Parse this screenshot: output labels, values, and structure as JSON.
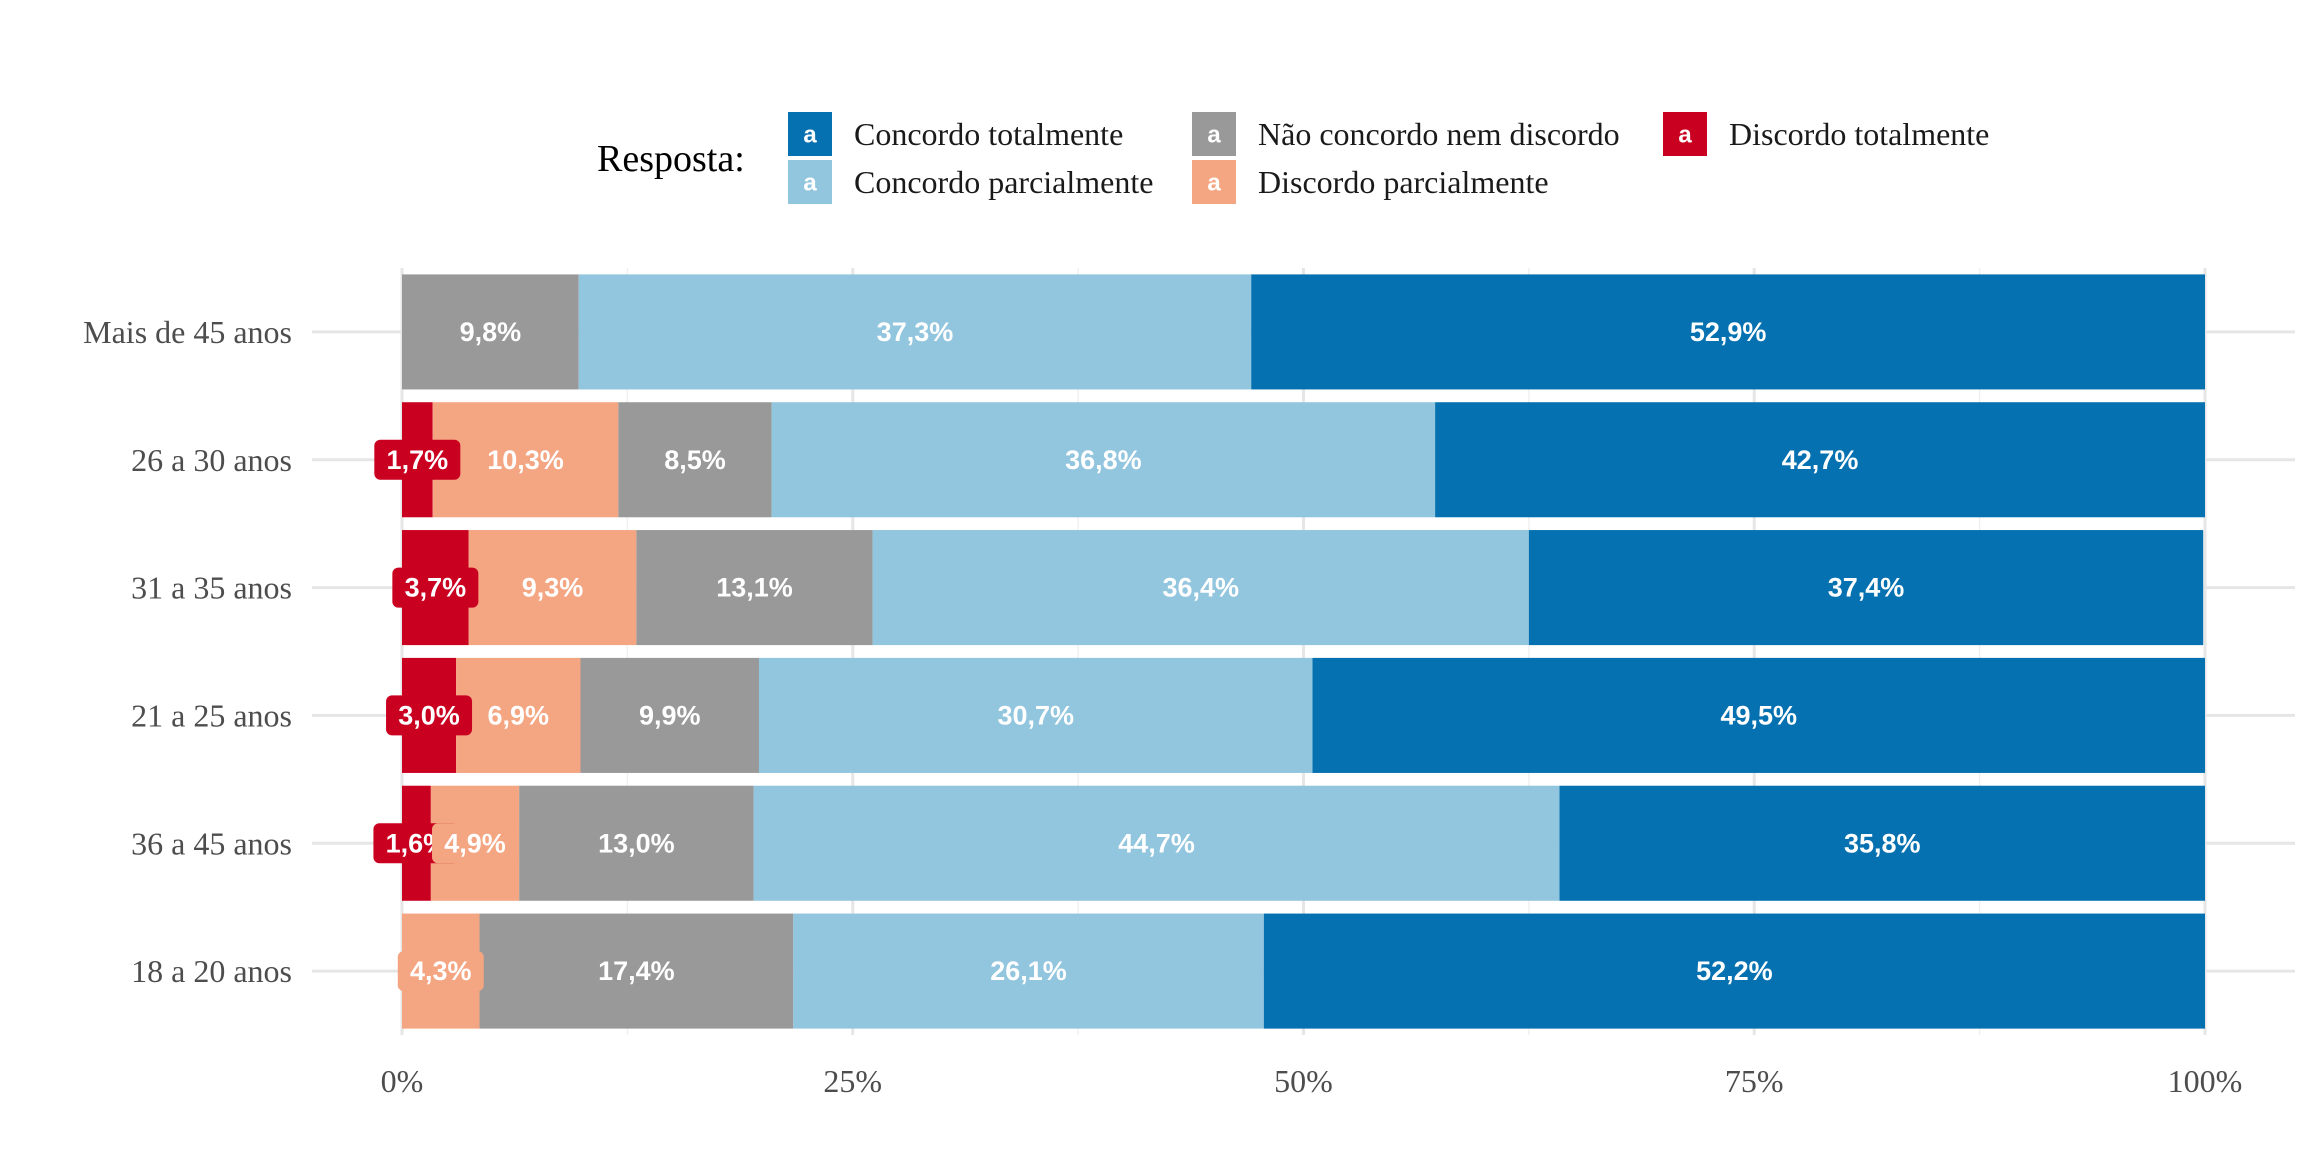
{
  "chart_data": {
    "type": "bar",
    "orientation": "horizontal",
    "stacked": true,
    "legend": {
      "title": "Resposta:",
      "position": "top",
      "key_glyph": "a"
    },
    "categories": [
      "Mais de 45 anos",
      "26 a 30 anos",
      "31 a 35 anos",
      "21 a 25 anos",
      "36 a 45 anos",
      "18 a 20 anos"
    ],
    "series": [
      {
        "name": "Discordo totalmente",
        "color": "#CA0020",
        "values": [
          0,
          1.7,
          3.7,
          3.0,
          1.6,
          0
        ],
        "labels": [
          "",
          "1,7%",
          "3,7%",
          "3,0%",
          "1,6%",
          ""
        ]
      },
      {
        "name": "Discordo parcialmente",
        "color": "#F4A582",
        "values": [
          0,
          10.3,
          9.3,
          6.9,
          4.9,
          4.3
        ],
        "labels": [
          "",
          "10,3%",
          "9,3%",
          "6,9%",
          "4,9%",
          "4,3%"
        ]
      },
      {
        "name": "Não concordo nem discordo",
        "color": "#999999",
        "values": [
          9.8,
          8.5,
          13.1,
          9.9,
          13.0,
          17.4
        ],
        "labels": [
          "9,8%",
          "8,5%",
          "13,1%",
          "9,9%",
          "13,0%",
          "17,4%"
        ]
      },
      {
        "name": "Concordo parcialmente",
        "color": "#92C5DE",
        "values": [
          37.3,
          36.8,
          36.4,
          30.7,
          44.7,
          26.1
        ],
        "labels": [
          "37,3%",
          "36,8%",
          "36,4%",
          "30,7%",
          "44,7%",
          "26,1%"
        ]
      },
      {
        "name": "Concordo totalmente",
        "color": "#0571B0",
        "values": [
          52.9,
          42.7,
          37.4,
          49.5,
          35.8,
          52.2
        ],
        "labels": [
          "52,9%",
          "42,7%",
          "37,4%",
          "49,5%",
          "35,8%",
          "52,2%"
        ]
      }
    ],
    "x_axis": {
      "range": [
        0,
        100
      ],
      "ticks": [
        0,
        25,
        50,
        75,
        100
      ],
      "tick_labels": [
        "0%",
        "25%",
        "50%",
        "75%",
        "100%"
      ]
    },
    "grid": true
  }
}
